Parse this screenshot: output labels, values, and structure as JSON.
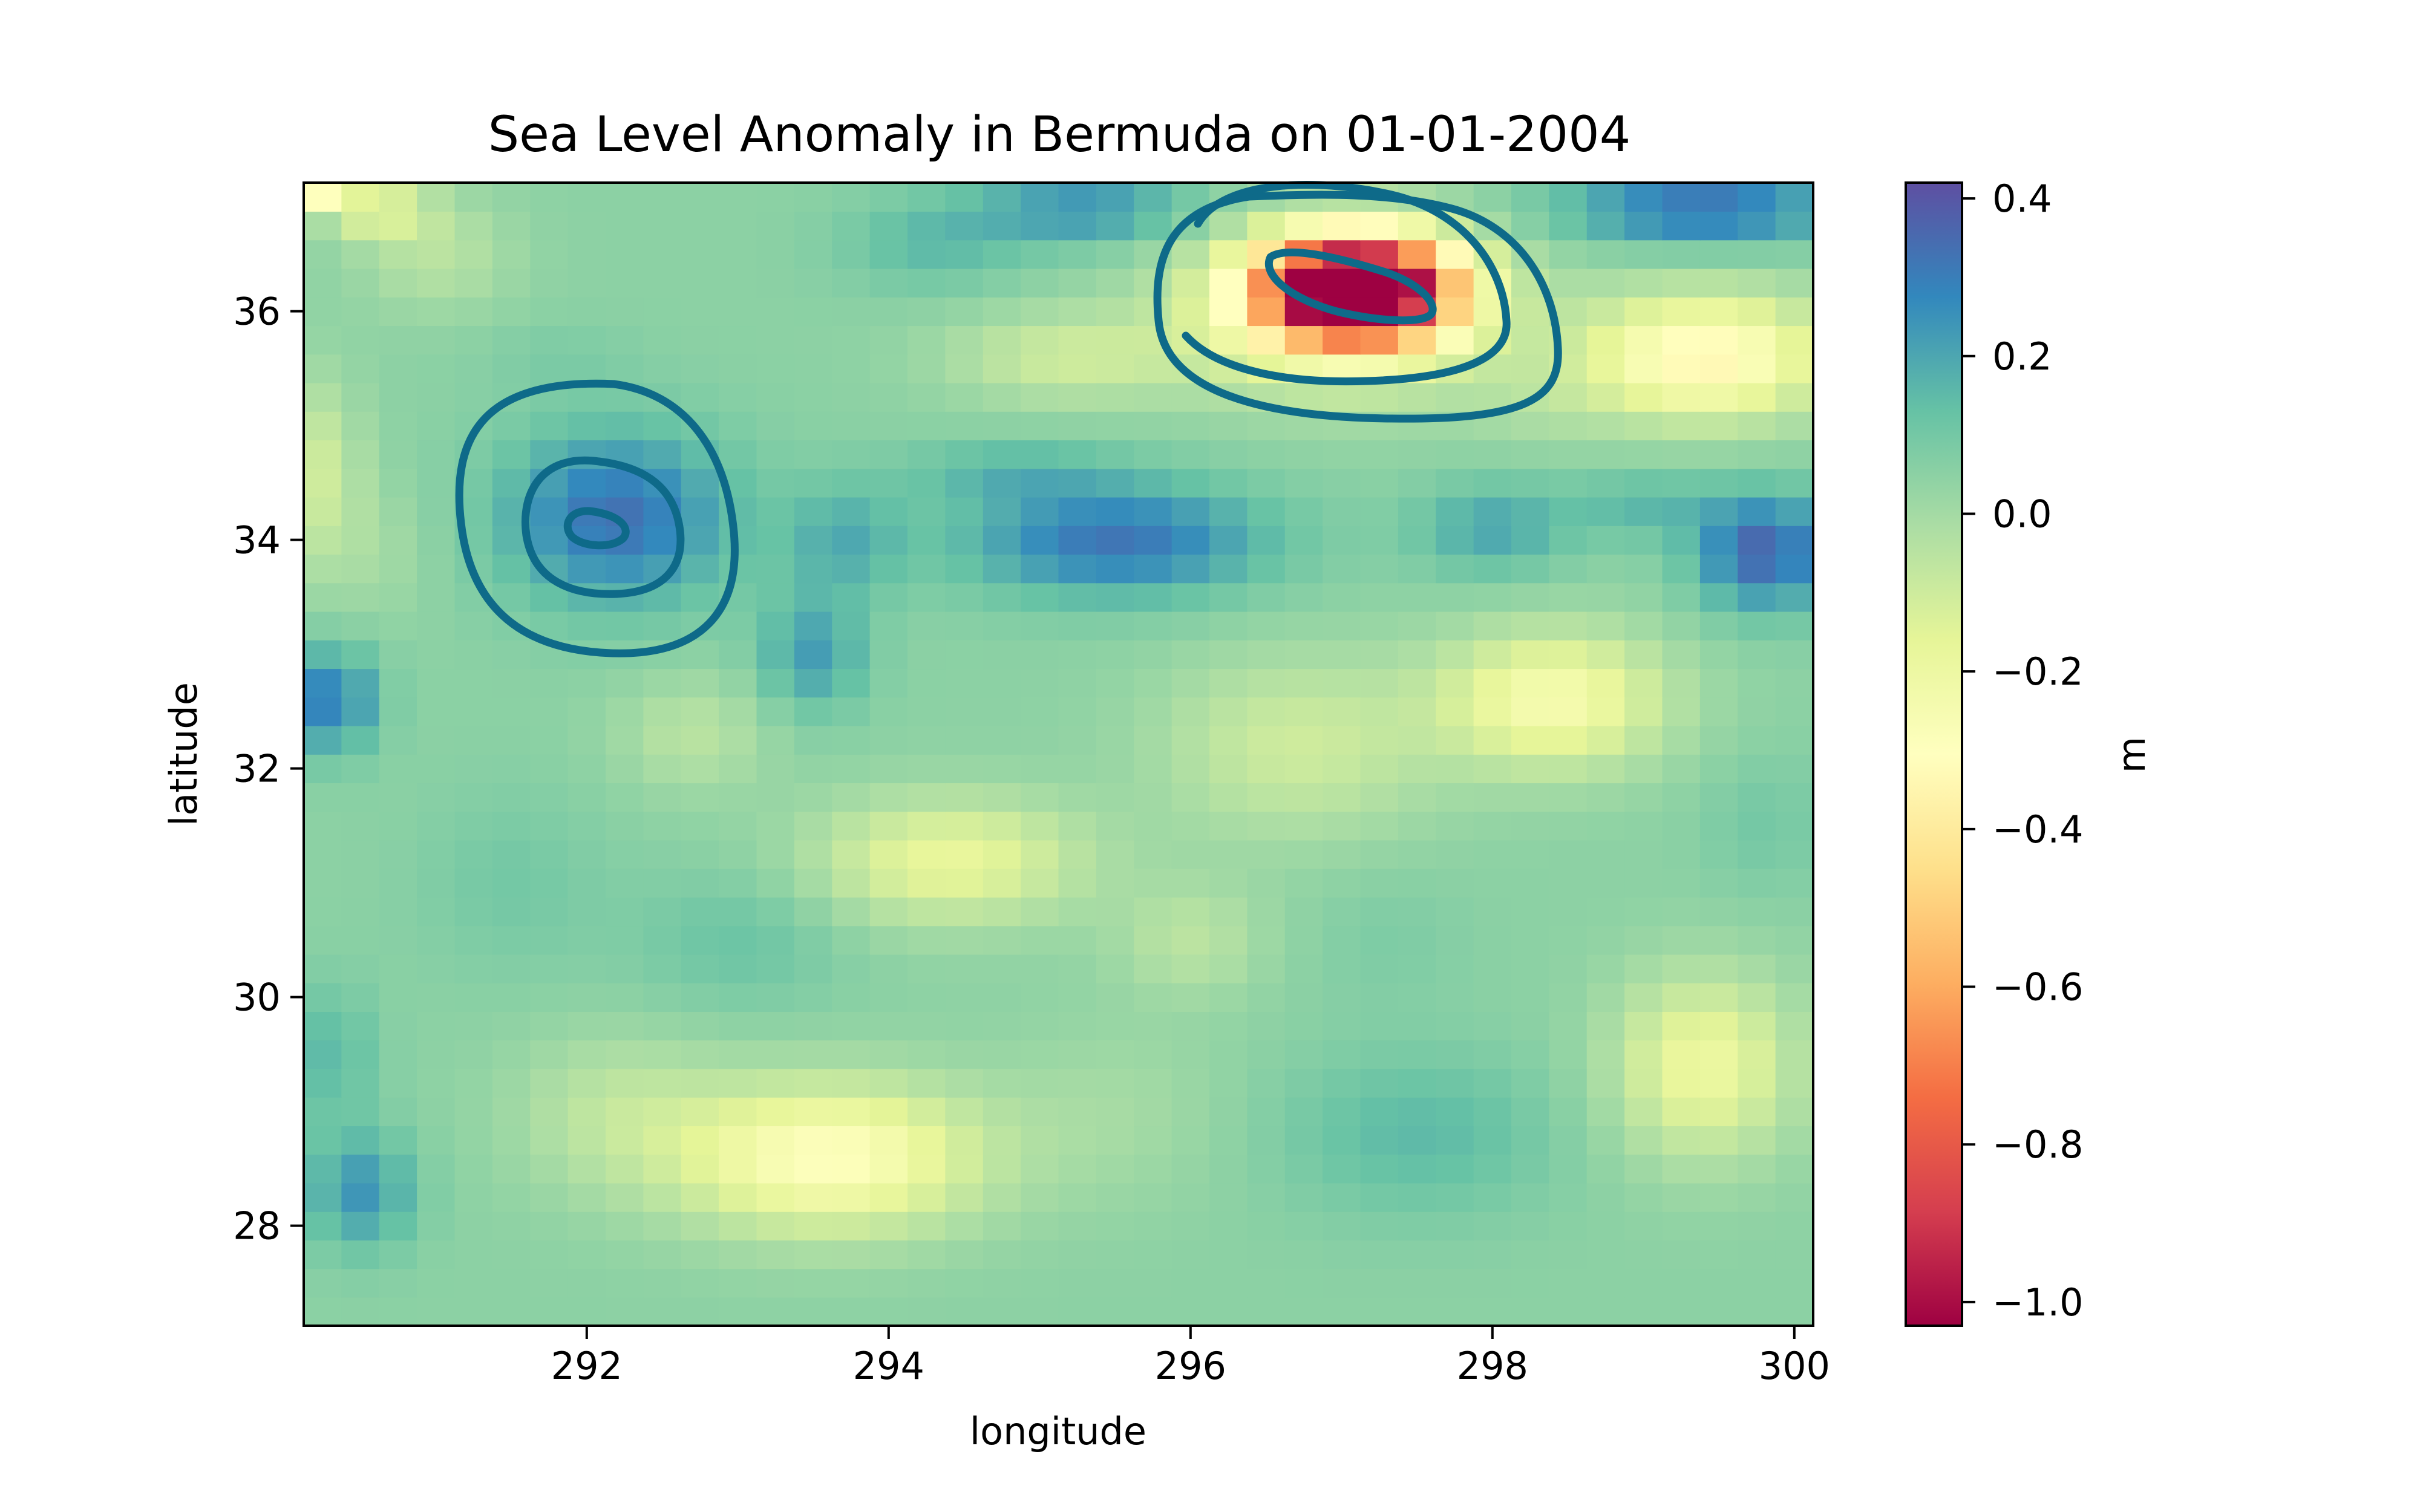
{
  "chart_data": {
    "type": "heatmap",
    "title": "Sea Level Anomaly in Bermuda on 01-01-2004",
    "xlabel": "longitude",
    "ylabel": "latitude",
    "colorbar_label": "m",
    "xlim": [
      290.125,
      300.125
    ],
    "ylim": [
      27.125,
      37.125
    ],
    "xticks": [
      292,
      294,
      296,
      298,
      300
    ],
    "yticks": [
      28,
      30,
      32,
      34,
      36
    ],
    "colorbar_ticks": [
      0.4,
      0.2,
      0.0,
      -0.2,
      -0.4,
      -0.6,
      -0.8,
      -1.0
    ],
    "color_range": [
      -1.03,
      0.42
    ],
    "colormap": "Spectral",
    "colormap_stops": [
      "#9e0142",
      "#d53e4f",
      "#f46d43",
      "#fdae61",
      "#fee08b",
      "#ffffbf",
      "#e6f598",
      "#abdda4",
      "#66c2a5",
      "#3288bd",
      "#5e4fa2"
    ],
    "grid_resolution_deg": 0.25,
    "background_value": 0.05,
    "features": [
      {
        "lon": 290.2,
        "lat": 37.0,
        "value": -0.25,
        "rlon": 0.2,
        "rlat": 0.12
      },
      {
        "lon": 290.6,
        "lat": 36.9,
        "value": -0.15,
        "rlon": 0.35,
        "rlat": 0.25
      },
      {
        "lon": 291.0,
        "lat": 36.5,
        "value": -0.05,
        "rlon": 0.5,
        "rlat": 0.5
      },
      {
        "lon": 290.2,
        "lat": 34.6,
        "value": -0.1,
        "rlon": 0.3,
        "rlat": 0.8
      },
      {
        "lon": 290.6,
        "lat": 33.9,
        "value": 0.0,
        "rlon": 0.4,
        "rlat": 0.6
      },
      {
        "lon": 290.3,
        "lat": 32.6,
        "value": 0.3,
        "rlon": 0.3,
        "rlat": 0.45
      },
      {
        "lon": 290.5,
        "lat": 28.3,
        "value": 0.24,
        "rlon": 0.35,
        "rlat": 0.5
      },
      {
        "lon": 290.3,
        "lat": 29.5,
        "value": 0.15,
        "rlon": 0.3,
        "rlat": 0.6
      },
      {
        "lon": 292.2,
        "lat": 34.2,
        "value": 0.33,
        "rlon": 0.75,
        "rlat": 0.75
      },
      {
        "lon": 291.8,
        "lat": 35.6,
        "value": 0.08,
        "rlon": 0.5,
        "rlat": 0.3
      },
      {
        "lon": 293.5,
        "lat": 33.0,
        "value": 0.22,
        "rlon": 0.35,
        "rlat": 0.5
      },
      {
        "lon": 293.7,
        "lat": 34.0,
        "value": 0.18,
        "rlon": 0.4,
        "rlat": 0.5
      },
      {
        "lon": 295.5,
        "lat": 34.0,
        "value": 0.32,
        "rlon": 1.0,
        "rlat": 0.5
      },
      {
        "lon": 294.8,
        "lat": 34.6,
        "value": 0.15,
        "rlon": 0.7,
        "rlat": 0.25
      },
      {
        "lon": 295.3,
        "lat": 36.9,
        "value": 0.25,
        "rlon": 0.7,
        "rlat": 0.3
      },
      {
        "lon": 294.3,
        "lat": 36.6,
        "value": 0.15,
        "rlon": 0.6,
        "rlat": 0.4
      },
      {
        "lon": 295.2,
        "lat": 35.6,
        "value": -0.1,
        "rlon": 0.8,
        "rlat": 0.4
      },
      {
        "lon": 297.1,
        "lat": 36.2,
        "value": -1.2,
        "rlon": 0.62,
        "rlat": 0.45
      },
      {
        "lon": 297.0,
        "lat": 36.0,
        "value": -0.28,
        "rlon": 1.0,
        "rlat": 0.7
      },
      {
        "lon": 298.3,
        "lat": 35.2,
        "value": 0.0,
        "rlon": 0.5,
        "rlat": 0.4
      },
      {
        "lon": 298.0,
        "lat": 34.1,
        "value": 0.2,
        "rlon": 0.5,
        "rlat": 0.4
      },
      {
        "lon": 299.4,
        "lat": 36.9,
        "value": 0.34,
        "rlon": 0.9,
        "rlat": 0.3
      },
      {
        "lon": 299.4,
        "lat": 35.6,
        "value": -0.35,
        "rlon": 0.8,
        "rlat": 0.55
      },
      {
        "lon": 299.8,
        "lat": 33.9,
        "value": 0.36,
        "rlon": 0.45,
        "rlat": 0.5
      },
      {
        "lon": 299.0,
        "lat": 34.3,
        "value": 0.15,
        "rlon": 0.5,
        "rlat": 0.3
      },
      {
        "lon": 298.4,
        "lat": 32.6,
        "value": -0.25,
        "rlon": 0.75,
        "rlat": 0.6
      },
      {
        "lon": 296.7,
        "lat": 32.2,
        "value": -0.1,
        "rlon": 0.9,
        "rlat": 0.8
      },
      {
        "lon": 294.4,
        "lat": 31.2,
        "value": -0.18,
        "rlon": 0.9,
        "rlat": 0.55
      },
      {
        "lon": 292.7,
        "lat": 32.3,
        "value": -0.05,
        "rlon": 0.5,
        "rlat": 0.5
      },
      {
        "lon": 293.0,
        "lat": 30.5,
        "value": 0.12,
        "rlon": 0.7,
        "rlat": 0.6
      },
      {
        "lon": 291.5,
        "lat": 31.0,
        "value": 0.1,
        "rlon": 0.6,
        "rlat": 0.8
      },
      {
        "lon": 293.6,
        "lat": 28.6,
        "value": -0.3,
        "rlon": 1.0,
        "rlat": 0.65
      },
      {
        "lon": 292.2,
        "lat": 29.0,
        "value": -0.05,
        "rlon": 0.7,
        "rlat": 0.7
      },
      {
        "lon": 295.5,
        "lat": 29.0,
        "value": 0.0,
        "rlon": 0.8,
        "rlat": 0.8
      },
      {
        "lon": 297.5,
        "lat": 28.8,
        "value": 0.15,
        "rlon": 0.9,
        "rlat": 0.7
      },
      {
        "lon": 297.3,
        "lat": 30.5,
        "value": 0.08,
        "rlon": 0.5,
        "rlat": 0.6
      },
      {
        "lon": 299.4,
        "lat": 29.4,
        "value": -0.2,
        "rlon": 0.6,
        "rlat": 0.8
      },
      {
        "lon": 296.0,
        "lat": 30.5,
        "value": -0.05,
        "rlon": 0.5,
        "rlat": 0.5
      },
      {
        "lon": 299.8,
        "lat": 31.5,
        "value": 0.1,
        "rlon": 0.4,
        "rlat": 0.6
      }
    ]
  }
}
